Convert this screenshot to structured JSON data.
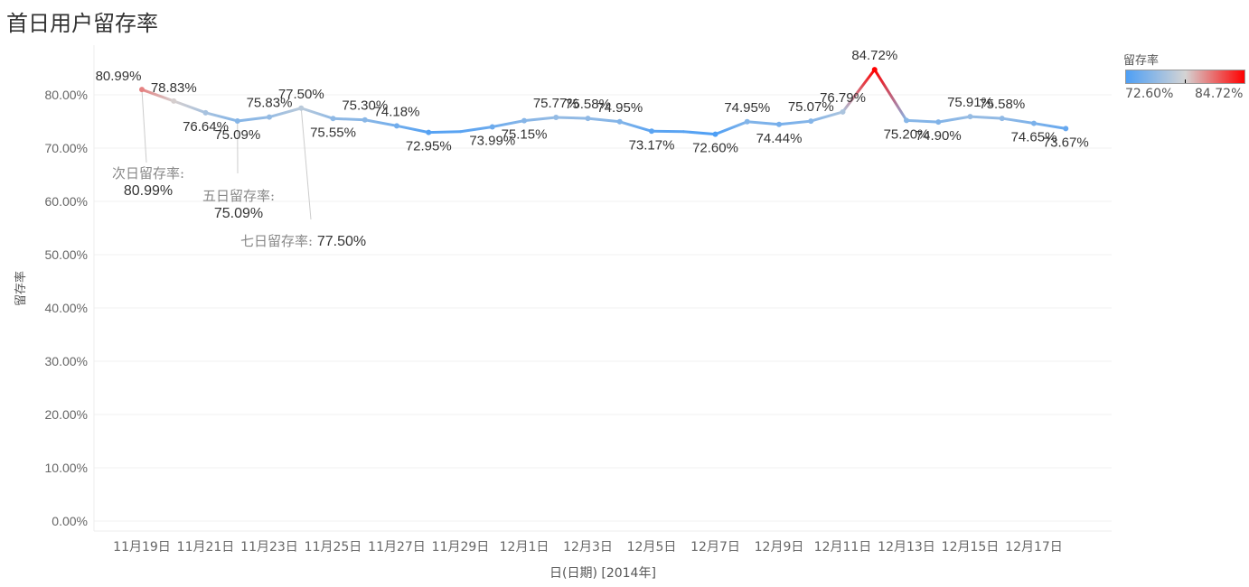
{
  "title": "首日用户留存率",
  "chart_data": {
    "type": "line",
    "title": "首日用户留存率",
    "xlabel": "日(日期) [2014年]",
    "ylabel": "留存率",
    "ylim": [
      0,
      85
    ],
    "yticks": [
      "0.00%",
      "10.00%",
      "20.00%",
      "30.00%",
      "40.00%",
      "50.00%",
      "60.00%",
      "70.00%",
      "80.00%"
    ],
    "xticks": [
      "11月19日",
      "11月21日",
      "11月23日",
      "11月25日",
      "11月27日",
      "11月29日",
      "12月1日",
      "12月3日",
      "12月5日",
      "12月7日",
      "12月9日",
      "12月11日",
      "12月13日",
      "12月15日",
      "12月17日"
    ],
    "values": [
      80.99,
      78.83,
      76.64,
      75.09,
      75.83,
      77.5,
      75.55,
      75.3,
      74.18,
      72.95,
      73.1,
      73.99,
      75.15,
      75.77,
      75.58,
      74.95,
      73.17,
      73.1,
      72.6,
      74.95,
      74.44,
      75.07,
      76.79,
      84.72,
      75.2,
      74.9,
      75.91,
      75.58,
      74.65,
      73.67
    ],
    "labels": [
      "80.99%",
      "78.83%",
      "76.64%",
      "75.09%",
      "75.83%",
      "77.50%",
      "75.55%",
      "75.30%",
      "74.18%",
      "72.95%",
      null,
      "73.99%",
      "75.15%",
      "75.77%",
      "75.58%",
      "74.95%",
      "73.17%",
      null,
      "72.60%",
      "74.95%",
      "74.44%",
      "75.07%",
      "76.79%",
      "84.72%",
      "75.20%",
      "74.90%",
      "75.91%",
      "75.58%",
      "74.65%",
      "73.67%"
    ],
    "legend": {
      "title": "留存率",
      "min": "72.60%",
      "max": "84.72%",
      "colors": [
        "#4e9ff5",
        "#d4d4d4",
        "#ff0000"
      ],
      "placement": "top-right"
    },
    "annotations": [
      {
        "label": "次日留存率:",
        "value": "80.99%"
      },
      {
        "label": "五日留存率:",
        "value": "75.09%"
      },
      {
        "label": "七日留存率:",
        "value": "77.50%"
      }
    ]
  }
}
